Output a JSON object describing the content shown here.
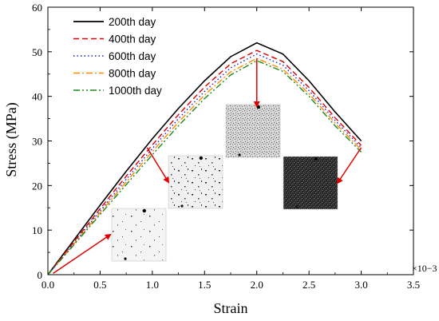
{
  "chart_data": {
    "type": "line",
    "xlabel": "Strain",
    "ylabel": "Stress (MPa)",
    "x_multiplier": "×10−3",
    "xlim": [
      0,
      3.5
    ],
    "ylim": [
      0,
      60
    ],
    "xticks": [
      0.0,
      0.5,
      1.0,
      1.5,
      2.0,
      2.5,
      3.0,
      3.5
    ],
    "xtick_labels": [
      "0.0",
      "0.5",
      "1.0",
      "1.5",
      "2.0",
      "2.5",
      "3.0",
      "3.5"
    ],
    "yticks": [
      0,
      10,
      20,
      30,
      40,
      50,
      60
    ],
    "ytick_labels": [
      "0",
      "10",
      "20",
      "30",
      "40",
      "50",
      "60"
    ],
    "grid": false,
    "legend_position": "top-left",
    "series": [
      {
        "name": "200th day",
        "color": "#000000",
        "dash": "solid",
        "x": [
          0,
          0.25,
          0.5,
          0.75,
          1.0,
          1.25,
          1.5,
          1.75,
          2.0,
          2.25,
          2.5,
          2.75,
          3.0
        ],
        "y": [
          0,
          7.8,
          15.6,
          23.2,
          30.5,
          37.3,
          43.5,
          48.9,
          52.0,
          49.5,
          43.5,
          36.5,
          30.0
        ]
      },
      {
        "name": "400th day",
        "color": "#e00000",
        "dash": "dashed",
        "x": [
          0,
          0.25,
          0.5,
          0.75,
          1.0,
          1.25,
          1.5,
          1.75,
          2.0,
          2.25,
          2.5,
          2.75,
          3.0
        ],
        "y": [
          0,
          7.4,
          14.8,
          22.1,
          29.1,
          35.9,
          42.1,
          47.3,
          50.3,
          47.8,
          42.0,
          35.2,
          29.0
        ]
      },
      {
        "name": "600th day",
        "color": "#1a1ae6",
        "dash": "dotted",
        "x": [
          0,
          0.25,
          0.5,
          0.75,
          1.0,
          1.25,
          1.5,
          1.75,
          2.0,
          2.25,
          2.5,
          2.75,
          3.0
        ],
        "y": [
          0,
          7.1,
          14.3,
          21.4,
          28.3,
          35.0,
          41.1,
          46.4,
          49.5,
          47.0,
          41.3,
          34.6,
          28.5
        ]
      },
      {
        "name": "800th day",
        "color": "#ff8c00",
        "dash": "dashdot",
        "x": [
          0,
          0.25,
          0.5,
          0.75,
          1.0,
          1.25,
          1.5,
          1.75,
          2.0,
          2.25,
          2.5,
          2.75,
          3.0
        ],
        "y": [
          0,
          6.9,
          13.9,
          20.8,
          27.6,
          34.2,
          40.3,
          45.5,
          48.5,
          46.1,
          40.6,
          34.0,
          28.0
        ]
      },
      {
        "name": "1000th day",
        "color": "#1a8a1a",
        "dash": "dashdotdot",
        "x": [
          0,
          0.25,
          0.5,
          0.75,
          1.0,
          1.25,
          1.5,
          1.75,
          2.0,
          2.25,
          2.5,
          2.75,
          3.0
        ],
        "y": [
          0,
          6.7,
          13.5,
          20.2,
          26.9,
          33.4,
          39.5,
          44.8,
          48.0,
          45.6,
          40.0,
          33.4,
          27.5
        ]
      }
    ]
  },
  "insets": [
    {
      "name": "inset-microstructure-early",
      "tone": "sparse",
      "points_to": [
        0.85,
        8.5
      ]
    },
    {
      "name": "inset-microstructure-mid",
      "tone": "moderate",
      "points_to": [
        0.95,
        28.5
      ]
    },
    {
      "name": "inset-microstructure-peak",
      "tone": "dense",
      "points_to": [
        2.0,
        49.5
      ]
    },
    {
      "name": "inset-microstructure-failure",
      "tone": "dark",
      "points_to": [
        3.0,
        28.5
      ]
    }
  ]
}
